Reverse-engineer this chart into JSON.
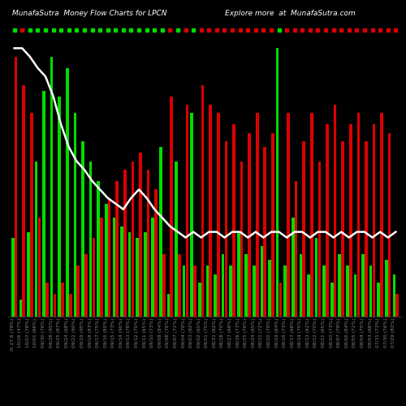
{
  "title": "MunafaSutra  Money Flow Charts for LPCN",
  "subtitle": "Explore more  at  MunafaSutra.com",
  "background_color": "#000000",
  "green_color": "#00dd00",
  "red_color": "#dd0000",
  "line_color": "#ffffff",
  "title_color": "#ffffff",
  "label_color": "#888888",
  "labels": [
    "AI 27.6 (79%)",
    "10/26 (47%)",
    "10/07 (78%)",
    "10/01 (66%)",
    "09/30 (76%)",
    "09/28 (95%)",
    "09/25 (87%)",
    "09/24 (68%)",
    "09/22 (90%)",
    "09/19 (95%)",
    "09/18 (83%)",
    "09/17 (75%)",
    "09/16 (80%)",
    "09/15 (73%)",
    "09/14 (90%)",
    "09/13 (78%)",
    "09/12 (70%)",
    "09/11 (65%)",
    "09/10 (73%)",
    "09/09 (84%)",
    "09/08 (76%)",
    "09/07 (72%)",
    "09/04 (78%)",
    "09/03 (82%)",
    "09/02 (65%)",
    "09/01 (75%)",
    "08/31 (82%)",
    "08/28 (70%)",
    "08/27 (68%)",
    "08/26 (73%)",
    "08/25 (76%)",
    "08/24 (65%)",
    "08/21 (72%)",
    "08/20 (78%)",
    "08/19 (84%)",
    "08/18 (73%)",
    "08/17 (66%)",
    "08/14 (75%)",
    "08/13 (82%)",
    "08/12 (70%)",
    "08/11 (65%)",
    "08/10 (73%)",
    "08/07 (78%)",
    "08/06 (84%)",
    "08/05 (72%)",
    "08/04 (75%)",
    "08/03 (68%)",
    "07/31 (73%)",
    "07/30 (76%)",
    "07/29 (82%)"
  ],
  "green_values": [
    0.28,
    0.06,
    0.3,
    0.55,
    0.8,
    0.92,
    0.78,
    0.88,
    0.72,
    0.62,
    0.55,
    0.48,
    0.4,
    0.35,
    0.32,
    0.3,
    0.28,
    0.3,
    0.35,
    0.6,
    0.08,
    0.55,
    0.18,
    0.72,
    0.12,
    0.18,
    0.15,
    0.22,
    0.18,
    0.3,
    0.22,
    0.18,
    0.25,
    0.2,
    0.95,
    0.18,
    0.35,
    0.22,
    0.15,
    0.28,
    0.18,
    0.12,
    0.22,
    0.18,
    0.15,
    0.22,
    0.18,
    0.12,
    0.2,
    0.15
  ],
  "red_values": [
    0.92,
    0.82,
    0.72,
    0.35,
    0.12,
    0.08,
    0.12,
    0.08,
    0.18,
    0.22,
    0.28,
    0.35,
    0.42,
    0.48,
    0.52,
    0.55,
    0.58,
    0.52,
    0.45,
    0.22,
    0.78,
    0.22,
    0.75,
    0.18,
    0.82,
    0.75,
    0.72,
    0.62,
    0.68,
    0.55,
    0.65,
    0.72,
    0.6,
    0.65,
    0.12,
    0.72,
    0.48,
    0.62,
    0.72,
    0.55,
    0.68,
    0.75,
    0.62,
    0.68,
    0.72,
    0.62,
    0.68,
    0.72,
    0.65,
    0.08
  ],
  "line_values": [
    0.95,
    0.95,
    0.92,
    0.88,
    0.85,
    0.78,
    0.68,
    0.6,
    0.55,
    0.52,
    0.48,
    0.45,
    0.42,
    0.4,
    0.38,
    0.42,
    0.45,
    0.42,
    0.38,
    0.35,
    0.32,
    0.3,
    0.28,
    0.3,
    0.28,
    0.3,
    0.3,
    0.28,
    0.3,
    0.3,
    0.28,
    0.3,
    0.28,
    0.3,
    0.3,
    0.28,
    0.3,
    0.3,
    0.28,
    0.3,
    0.3,
    0.28,
    0.3,
    0.28,
    0.3,
    0.3,
    0.28,
    0.3,
    0.28,
    0.3
  ],
  "dot_colors": [
    "green",
    "red",
    "green",
    "green",
    "green",
    "green",
    "green",
    "green",
    "green",
    "green",
    "green",
    "green",
    "green",
    "green",
    "green",
    "green",
    "green",
    "green",
    "green",
    "green",
    "red",
    "green",
    "red",
    "green",
    "red",
    "red",
    "red",
    "red",
    "red",
    "red",
    "red",
    "red",
    "red",
    "red",
    "green",
    "red",
    "red",
    "red",
    "red",
    "red",
    "red",
    "red",
    "red",
    "red",
    "red",
    "red",
    "red",
    "red",
    "red",
    "red"
  ]
}
